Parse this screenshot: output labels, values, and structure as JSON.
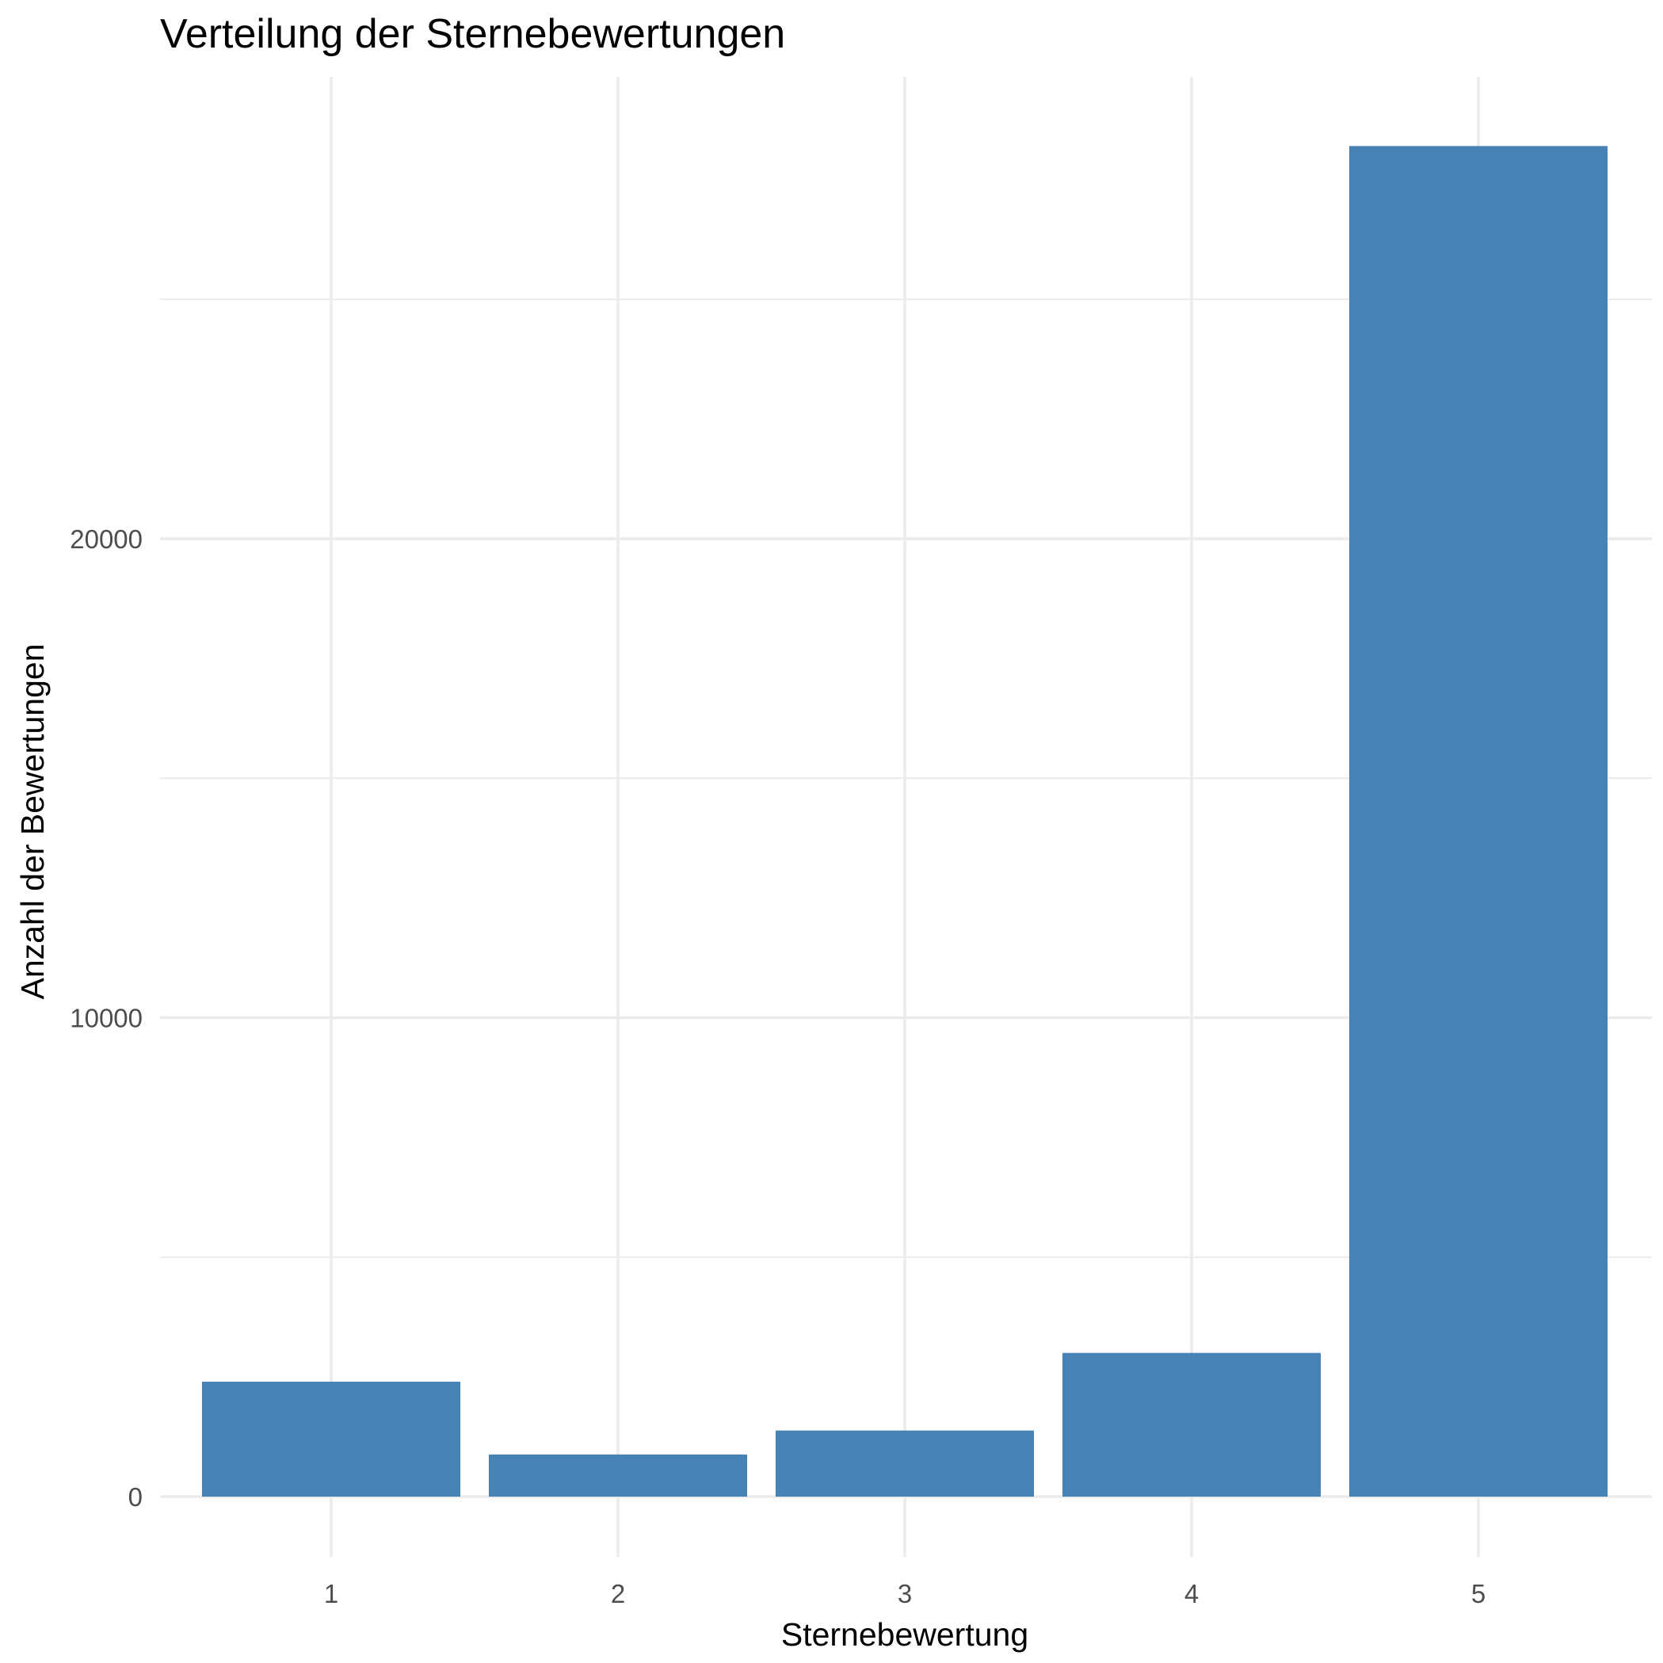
{
  "chart_data": {
    "type": "bar",
    "title": "Verteilung der Sternebewertungen",
    "xlabel": "Sternebewertung",
    "ylabel": "Anzahl der Bewertungen",
    "categories": [
      "1",
      "2",
      "3",
      "4",
      "5"
    ],
    "values": [
      2400,
      880,
      1380,
      3000,
      28200
    ],
    "ylim": [
      -900,
      30000
    ],
    "yticks": [
      0,
      10000,
      20000
    ],
    "yticks_minor": [
      5000,
      15000,
      25000
    ],
    "bar_color": "#4682b4",
    "grid": true,
    "legend": "none"
  }
}
